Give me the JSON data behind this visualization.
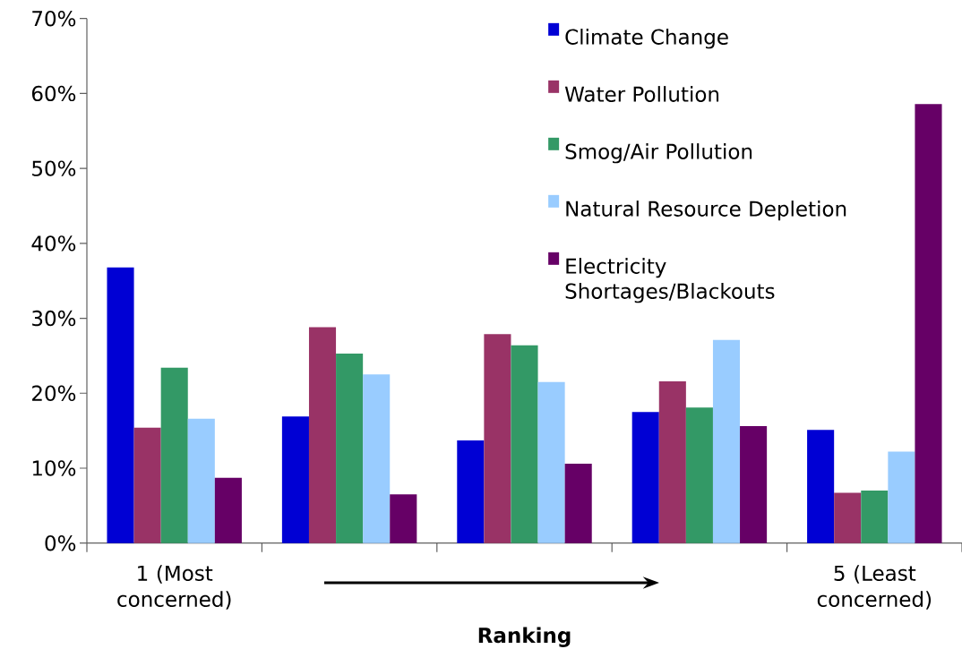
{
  "chart_data": {
    "type": "bar",
    "xlabel": "Ranking",
    "categories": [
      "1 (Most concerned)",
      null,
      null,
      null,
      "5 (Least concerned)"
    ],
    "series": [
      {
        "name": "Climate Change",
        "color": "#0000d4",
        "values": [
          36.8,
          16.9,
          13.7,
          17.5,
          15.1
        ]
      },
      {
        "name": "Water Pollution",
        "color": "#993366",
        "values": [
          15.4,
          28.8,
          27.9,
          21.6,
          6.7
        ]
      },
      {
        "name": "Smog/Air Pollution",
        "color": "#339966",
        "values": [
          23.4,
          25.3,
          26.4,
          18.1,
          7
        ]
      },
      {
        "name": "Natural Resource Depletion",
        "color": "#99ccff",
        "values": [
          16.6,
          22.5,
          21.5,
          27.1,
          12.2
        ]
      },
      {
        "name": "Electricity Shortages/Blackouts",
        "color": "#660066",
        "values": [
          8.7,
          6.5,
          10.6,
          15.6,
          58.6
        ]
      }
    ],
    "ylim": [
      0,
      70
    ],
    "yticks": [
      {
        "value": 0,
        "label": "0%"
      },
      {
        "value": 10,
        "label": "10%"
      },
      {
        "value": 20,
        "label": "20%"
      },
      {
        "value": 30,
        "label": "30%"
      },
      {
        "value": 40,
        "label": "40%"
      },
      {
        "value": 50,
        "label": "50%"
      },
      {
        "value": 60,
        "label": "60%"
      },
      {
        "value": 70,
        "label": "70%"
      }
    ],
    "legend": "top right"
  }
}
